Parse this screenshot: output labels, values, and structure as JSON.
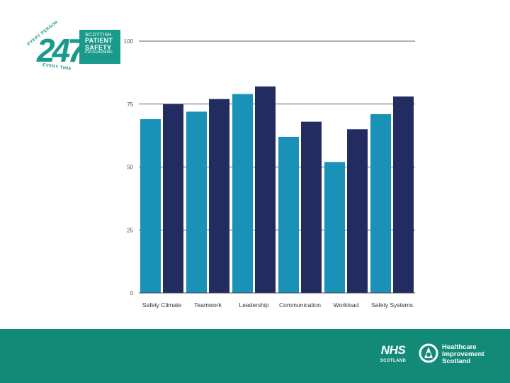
{
  "logo": {
    "programme_line1": "SCOTTISH",
    "programme_line2": "PATIENT",
    "programme_line3": "SAFETY",
    "programme_line4": "PROGRAMME",
    "ring_top": "EVERY PERSON",
    "ring_bottom": "EVERY TIME",
    "digits": "247"
  },
  "footer": {
    "nhs": "NHS",
    "nhs_sub": "SCOTLAND",
    "his_line1": "Healthcare",
    "his_line2": "Improvement",
    "his_line3": "Scotland"
  },
  "colors": {
    "series1": "#1a92b8",
    "series2": "#222c60",
    "footer": "#138a78",
    "logo_teal": "#1a9a8a"
  },
  "chart_data": {
    "type": "bar",
    "title": "",
    "xlabel": "",
    "ylabel": "",
    "ylim": [
      0,
      100
    ],
    "yticks": [
      0,
      25,
      50,
      75,
      100
    ],
    "grid": true,
    "categories": [
      "Safety Climate",
      "Teamwork",
      "Leadership",
      "Communication",
      "Workload",
      "Safety Systems"
    ],
    "series": [
      {
        "values": [
          69,
          72,
          79,
          62,
          52,
          71
        ]
      },
      {
        "values": [
          75,
          77,
          82,
          68,
          65,
          78
        ]
      }
    ]
  }
}
